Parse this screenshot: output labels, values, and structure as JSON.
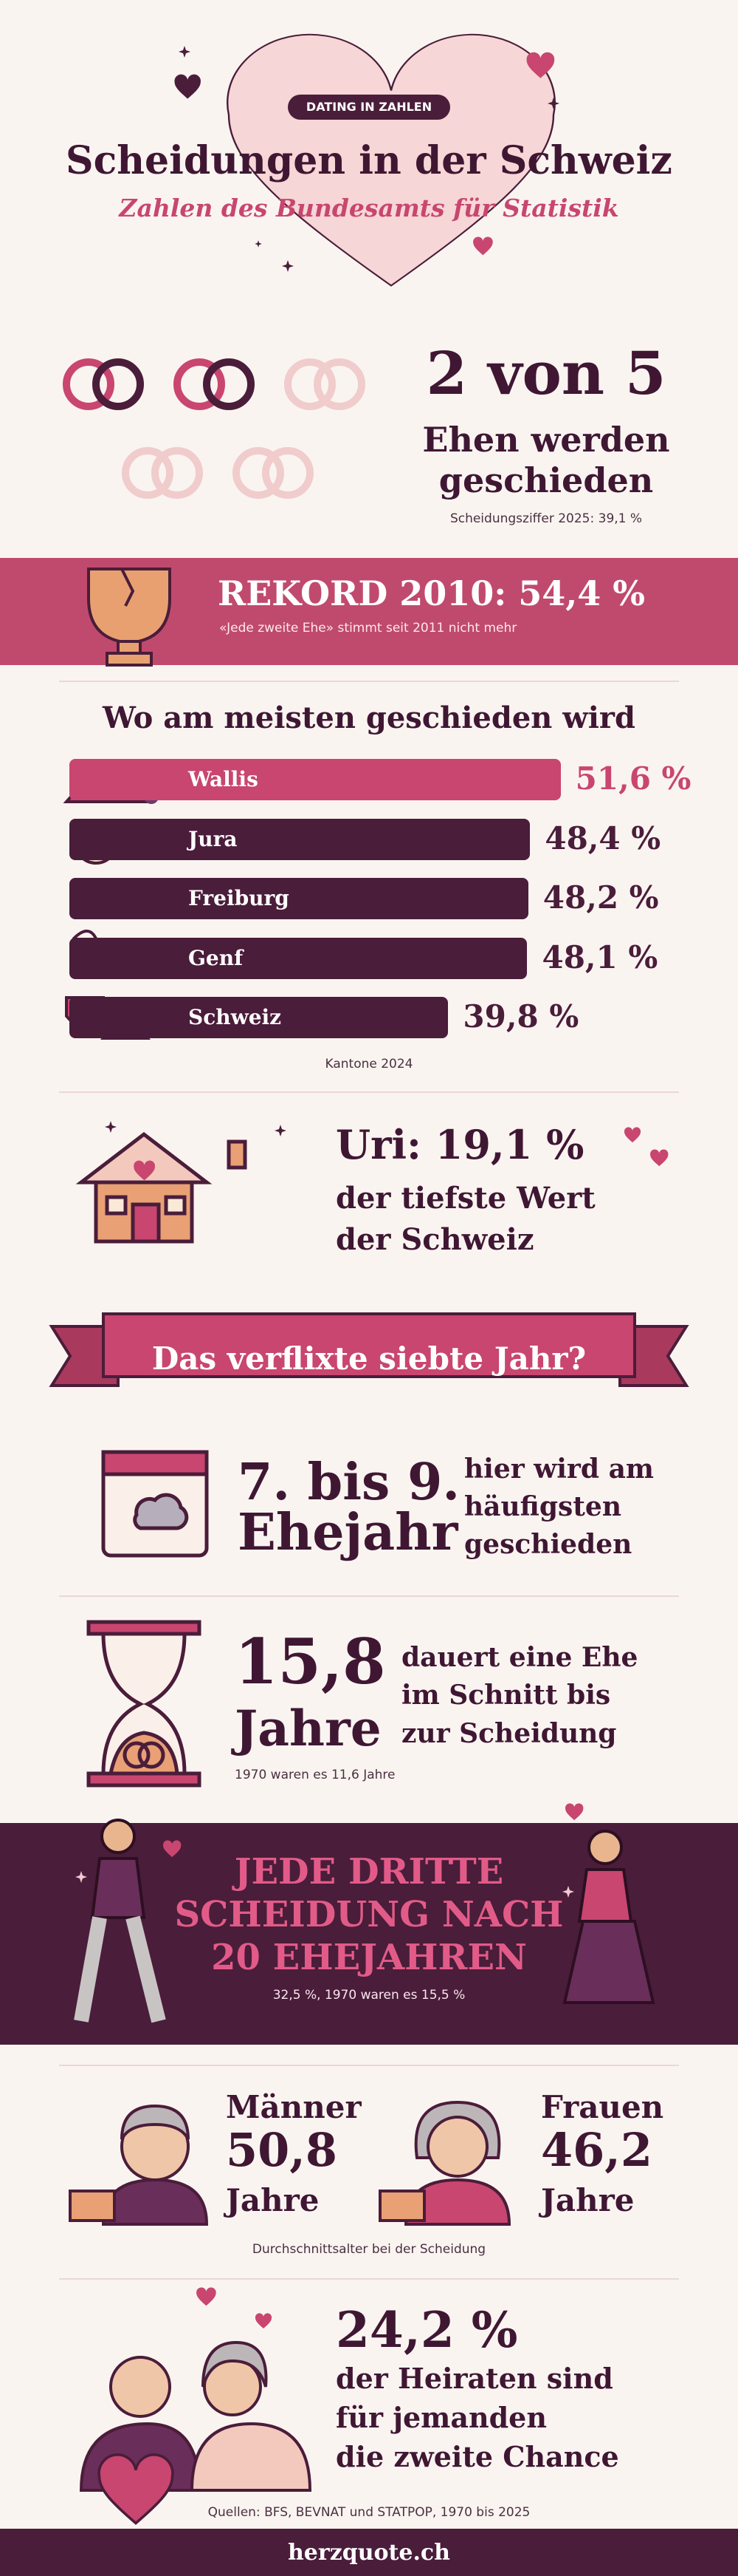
{
  "header": {
    "badge": "DATING IN ZAHLEN",
    "title": "Scheidungen in der Schweiz",
    "subtitle": "Zahlen des Bundesamts für Statistik"
  },
  "ratio": {
    "headline": "2 von 5",
    "text": [
      "Ehen werden",
      "geschieden"
    ],
    "note": "Scheidungsziffer 2025: 39,1 %"
  },
  "record": {
    "headline": "REKORD 2010: 54,4 %",
    "note": "«Jede zweite Ehe» stimmt seit 2011 nicht mehr"
  },
  "cantons": {
    "title": "Wo am meisten geschieden wird",
    "items": [
      {
        "name": "Wallis",
        "value": 51.6,
        "label": "51,6 %",
        "color": "#c8466f"
      },
      {
        "name": "Jura",
        "value": 48.4,
        "label": "48,4 %",
        "color": "#4a1d3a"
      },
      {
        "name": "Freiburg",
        "value": 48.2,
        "label": "48,2 %",
        "color": "#4a1d3a"
      },
      {
        "name": "Genf",
        "value": 48.1,
        "label": "48,1 %",
        "color": "#4a1d3a"
      },
      {
        "name": "Schweiz",
        "value": 39.8,
        "label": "39,8 %",
        "color": "#4a1d3a"
      }
    ],
    "note": "Kantone 2024"
  },
  "lowest": {
    "headline": "Uri: 19,1 %",
    "text": [
      "der tiefste Wert",
      "der Schweiz"
    ]
  },
  "banner": "Das verflixte siebte Jahr?",
  "peak": {
    "headline": [
      "7. bis 9.",
      "Ehejahr"
    ],
    "text": [
      "hier wird am",
      "häufigsten",
      "geschieden"
    ]
  },
  "duration": {
    "headline": [
      "15,8",
      "Jahre"
    ],
    "text": [
      "dauert eine Ehe",
      "im Schnitt bis",
      "zur Scheidung"
    ],
    "note": "1970 waren es 11,6 Jahre"
  },
  "long_marriages": {
    "headline": [
      "JEDE DRITTE",
      "SCHEIDUNG NACH",
      "20 EHEJAHREN"
    ],
    "note": "32,5 %, 1970 waren es 15,5 %"
  },
  "age": {
    "men": [
      "Männer",
      "50,8",
      "Jahre"
    ],
    "women": [
      "Frauen",
      "46,2",
      "Jahre"
    ],
    "note": "Durchschnittsalter bei der Scheidung"
  },
  "remarriage": {
    "headline": "24,2 %",
    "text": [
      "der Heiraten sind",
      "für jemanden",
      "die zweite Chance"
    ]
  },
  "sources": "Quellen: BFS, BEVNAT und STATPOP, 1970 bis 2025",
  "footer": "herzquote.ch"
}
